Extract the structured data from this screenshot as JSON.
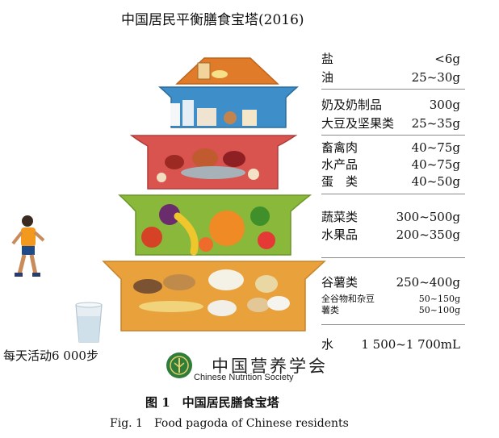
{
  "title": "中国居民平衡膳食宝塔(2016)",
  "tiers": [
    {
      "items": [
        {
          "name": "盐",
          "amount": "<6g"
        },
        {
          "name": "油",
          "amount": "25~30g"
        }
      ]
    },
    {
      "items": [
        {
          "name": "奶及奶制品",
          "amount": "300g"
        },
        {
          "name": "大豆及坚果类",
          "amount": "25~35g"
        }
      ]
    },
    {
      "items": [
        {
          "name": "畜禽肉",
          "amount": "40~75g"
        },
        {
          "name": "水产品",
          "amount": "40~75g"
        },
        {
          "name": "蛋　类",
          "amount": "40~50g"
        }
      ]
    },
    {
      "items": [
        {
          "name": "蔬菜类",
          "amount": "300~500g"
        },
        {
          "name": "水果品",
          "amount": "200~350g"
        }
      ]
    },
    {
      "items": [
        {
          "name": "谷薯类",
          "amount": "250~400g"
        },
        {
          "name": "全谷物和杂豆",
          "amount": "50~150g"
        },
        {
          "name": "薯类",
          "amount": "50~100g"
        }
      ]
    }
  ],
  "water": {
    "name": "水",
    "amount": "1 500~1 700mL"
  },
  "activity": "每天活动6 000步",
  "logo": {
    "chinese": "中国营养学会",
    "english": "Chinese Nutrition Society"
  },
  "caption": {
    "chinese": "图 1　中国居民膳食宝塔",
    "english": "Fig. 1　Food pagoda of Chinese residents"
  },
  "colors": {
    "tier1": "#e07b2a",
    "tier2": "#3e8ec9",
    "tier3": "#d9534f",
    "tier4": "#8ab83a",
    "tier5": "#e9a13b"
  }
}
